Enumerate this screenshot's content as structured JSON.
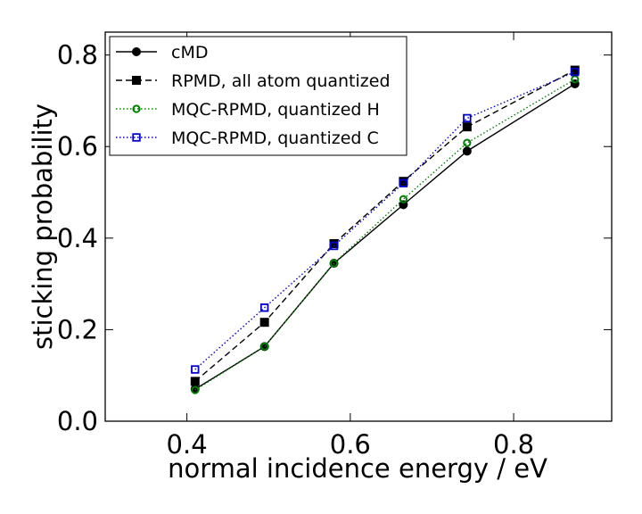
{
  "chart_data": {
    "type": "line",
    "title": "",
    "xlabel": "normal incidence energy / eV",
    "ylabel": "sticking probability",
    "xlim": [
      0.3,
      0.92
    ],
    "ylim": [
      0.0,
      0.85
    ],
    "xticks": [
      0.4,
      0.6,
      0.8
    ],
    "xtick_labels": [
      "0.4",
      "0.6",
      "0.8"
    ],
    "yticks": [
      0.0,
      0.2,
      0.4,
      0.6,
      0.8
    ],
    "ytick_labels": [
      "0.0",
      "0.2",
      "0.4",
      "0.6",
      "0.8"
    ],
    "grid": false,
    "legend_position": "top-left",
    "series": [
      {
        "name": "cMD",
        "color": "#000000",
        "line_style": "solid",
        "marker": "circle-filled",
        "x": [
          0.41,
          0.495,
          0.58,
          0.665,
          0.743,
          0.875
        ],
        "y": [
          0.07,
          0.163,
          0.345,
          0.473,
          0.59,
          0.737
        ]
      },
      {
        "name": "RPMD, all atom quantized",
        "color": "#000000",
        "line_style": "dashed",
        "marker": "square-filled",
        "x": [
          0.41,
          0.495,
          0.58,
          0.665,
          0.743,
          0.875
        ],
        "y": [
          0.087,
          0.216,
          0.388,
          0.524,
          0.643,
          0.767
        ]
      },
      {
        "name": "MQC-RPMD, quantized H",
        "color": "#008000",
        "line_style": "dotted",
        "marker": "circle-open",
        "x": [
          0.41,
          0.495,
          0.58,
          0.665,
          0.743,
          0.875
        ],
        "y": [
          0.068,
          0.163,
          0.345,
          0.485,
          0.608,
          0.747
        ]
      },
      {
        "name": "MQC-RPMD, quantized C",
        "color": "#0000cc",
        "line_style": "dotted",
        "marker": "square-open",
        "x": [
          0.41,
          0.495,
          0.58,
          0.665,
          0.743,
          0.875
        ],
        "y": [
          0.113,
          0.248,
          0.383,
          0.52,
          0.662,
          0.763
        ]
      }
    ]
  }
}
